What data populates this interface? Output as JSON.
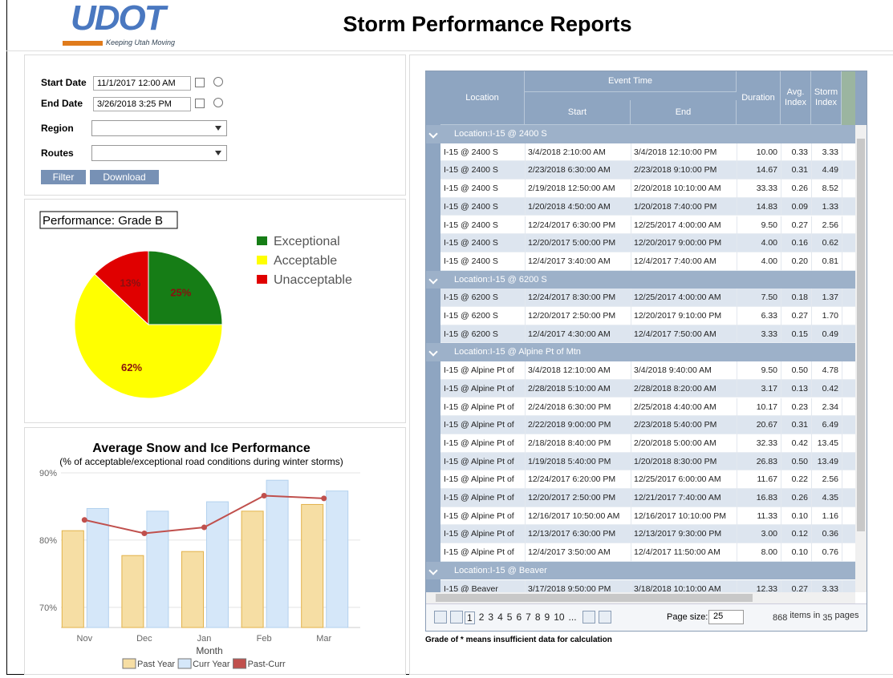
{
  "header": {
    "logo_text": "UDOT",
    "logo_tagline": "Keeping Utah Moving",
    "title": "Storm Performance Reports"
  },
  "filters": {
    "start_date_label": "Start Date",
    "start_date": "11/1/2017 12:00 AM",
    "end_date_label": "End Date",
    "end_date": "3/26/2018 3:25 PM",
    "region_label": "Region",
    "routes_label": "Routes",
    "buttons": [
      "Filter",
      "Download"
    ]
  },
  "chart_data": [
    {
      "type": "pie",
      "title": "Performance: Grade B",
      "categories": [
        "Exceptional",
        "Acceptable",
        "Unacceptable"
      ],
      "values": [
        25,
        62,
        13
      ],
      "value_labels": [
        "25%",
        "62%",
        "13%"
      ],
      "colors": [
        "#167d16",
        "#ffff00",
        "#e00000"
      ],
      "legend": "right"
    },
    {
      "type": "bar",
      "title": "Average Snow and Ice Performance",
      "subtitle": "(% of acceptable/exceptional road conditions during winter storms)",
      "x_label": "Month",
      "categories": [
        "Nov",
        "Dec",
        "Jan",
        "Feb",
        "Mar"
      ],
      "series": [
        {
          "name": "Past Year",
          "color": "#f6dea4",
          "values": [
            81.4,
            77.7,
            78.3,
            84.3,
            85.3
          ]
        },
        {
          "name": "Curr Year",
          "color": "#d5e7f9",
          "values": [
            84.7,
            84.3,
            85.7,
            88.9,
            87.3
          ]
        },
        {
          "name": "Past-Curr",
          "type": "line",
          "color": "#c0504d",
          "values": [
            83.0,
            81.0,
            81.9,
            86.6,
            86.2
          ]
        }
      ],
      "ylim": [
        67,
        90
      ],
      "yticks": [
        {
          "value": 70,
          "label": "70%"
        },
        {
          "value": 80,
          "label": "80%"
        },
        {
          "value": 90,
          "label": "90%"
        }
      ],
      "grid": true,
      "legend": "bottom"
    }
  ],
  "table": {
    "columns": {
      "location": "Location",
      "event_time": "Event Time",
      "start": "Start",
      "end": "End",
      "duration": "Duration",
      "avg_index": "Avg. Index",
      "storm_index": "Storm Index"
    },
    "groups": [
      {
        "label": "Location:I-15 @ 2400 S",
        "rows": [
          [
            "I-15 @ 2400 S",
            "3/4/2018 2:10:00 AM",
            "3/4/2018 12:10:00 PM",
            "10.00",
            "0.33",
            "3.33"
          ],
          [
            "I-15 @ 2400 S",
            "2/23/2018 6:30:00 AM",
            "2/23/2018 9:10:00 PM",
            "14.67",
            "0.31",
            "4.49"
          ],
          [
            "I-15 @ 2400 S",
            "2/19/2018 12:50:00 AM",
            "2/20/2018 10:10:00 AM",
            "33.33",
            "0.26",
            "8.52"
          ],
          [
            "I-15 @ 2400 S",
            "1/20/2018 4:50:00 AM",
            "1/20/2018 7:40:00 PM",
            "14.83",
            "0.09",
            "1.33"
          ],
          [
            "I-15 @ 2400 S",
            "12/24/2017 6:30:00 PM",
            "12/25/2017 4:00:00 AM",
            "9.50",
            "0.27",
            "2.56"
          ],
          [
            "I-15 @ 2400 S",
            "12/20/2017 5:00:00 PM",
            "12/20/2017 9:00:00 PM",
            "4.00",
            "0.16",
            "0.62"
          ],
          [
            "I-15 @ 2400 S",
            "12/4/2017 3:40:00 AM",
            "12/4/2017 7:40:00 AM",
            "4.00",
            "0.20",
            "0.81"
          ]
        ]
      },
      {
        "label": "Location:I-15 @ 6200 S",
        "rows": [
          [
            "I-15 @ 6200 S",
            "12/24/2017 8:30:00 PM",
            "12/25/2017 4:00:00 AM",
            "7.50",
            "0.18",
            "1.37"
          ],
          [
            "I-15 @ 6200 S",
            "12/20/2017 2:50:00 PM",
            "12/20/2017 9:10:00 PM",
            "6.33",
            "0.27",
            "1.70"
          ],
          [
            "I-15 @ 6200 S",
            "12/4/2017 4:30:00 AM",
            "12/4/2017 7:50:00 AM",
            "3.33",
            "0.15",
            "0.49"
          ]
        ]
      },
      {
        "label": "Location:I-15 @ Alpine Pt of Mtn",
        "rows": [
          [
            "I-15 @ Alpine Pt of",
            "3/4/2018 12:10:00 AM",
            "3/4/2018 9:40:00 AM",
            "9.50",
            "0.50",
            "4.78"
          ],
          [
            "I-15 @ Alpine Pt of",
            "2/28/2018 5:10:00 AM",
            "2/28/2018 8:20:00 AM",
            "3.17",
            "0.13",
            "0.42"
          ],
          [
            "I-15 @ Alpine Pt of",
            "2/24/2018 6:30:00 PM",
            "2/25/2018 4:40:00 AM",
            "10.17",
            "0.23",
            "2.34"
          ],
          [
            "I-15 @ Alpine Pt of",
            "2/22/2018 9:00:00 PM",
            "2/23/2018 5:40:00 PM",
            "20.67",
            "0.31",
            "6.49"
          ],
          [
            "I-15 @ Alpine Pt of",
            "2/18/2018 8:40:00 PM",
            "2/20/2018 5:00:00 AM",
            "32.33",
            "0.42",
            "13.45"
          ],
          [
            "I-15 @ Alpine Pt of",
            "1/19/2018 5:40:00 PM",
            "1/20/2018 8:30:00 PM",
            "26.83",
            "0.50",
            "13.49"
          ],
          [
            "I-15 @ Alpine Pt of",
            "12/24/2017 6:20:00 PM",
            "12/25/2017 6:00:00 AM",
            "11.67",
            "0.22",
            "2.56"
          ],
          [
            "I-15 @ Alpine Pt of",
            "12/20/2017 2:50:00 PM",
            "12/21/2017 7:40:00 AM",
            "16.83",
            "0.26",
            "4.35"
          ],
          [
            "I-15 @ Alpine Pt of",
            "12/16/2017 10:50:00 AM",
            "12/16/2017 10:10:00 PM",
            "11.33",
            "0.10",
            "1.16"
          ],
          [
            "I-15 @ Alpine Pt of",
            "12/13/2017 6:30:00 PM",
            "12/13/2017 9:30:00 PM",
            "3.00",
            "0.12",
            "0.36"
          ],
          [
            "I-15 @ Alpine Pt of",
            "12/4/2017 3:50:00 AM",
            "12/4/2017 11:50:00 AM",
            "8.00",
            "0.10",
            "0.76"
          ]
        ]
      },
      {
        "label": "Location:I-15 @ Beaver",
        "rows": [
          [
            "I-15 @ Beaver",
            "3/17/2018 9:50:00 PM",
            "3/18/2018 10:10:00 AM",
            "12.33",
            "0.27",
            "3.33"
          ]
        ]
      }
    ]
  },
  "pager": {
    "pages": [
      "1",
      "2",
      "3",
      "4",
      "5",
      "6",
      "7",
      "8",
      "9",
      "10",
      "..."
    ],
    "page_size_label": "Page size:",
    "page_size": "25",
    "total": "868",
    "items_in": "items in",
    "page_count": "35",
    "pages_label": "pages"
  },
  "footnote": "Grade of * means insufficient data for calculation"
}
